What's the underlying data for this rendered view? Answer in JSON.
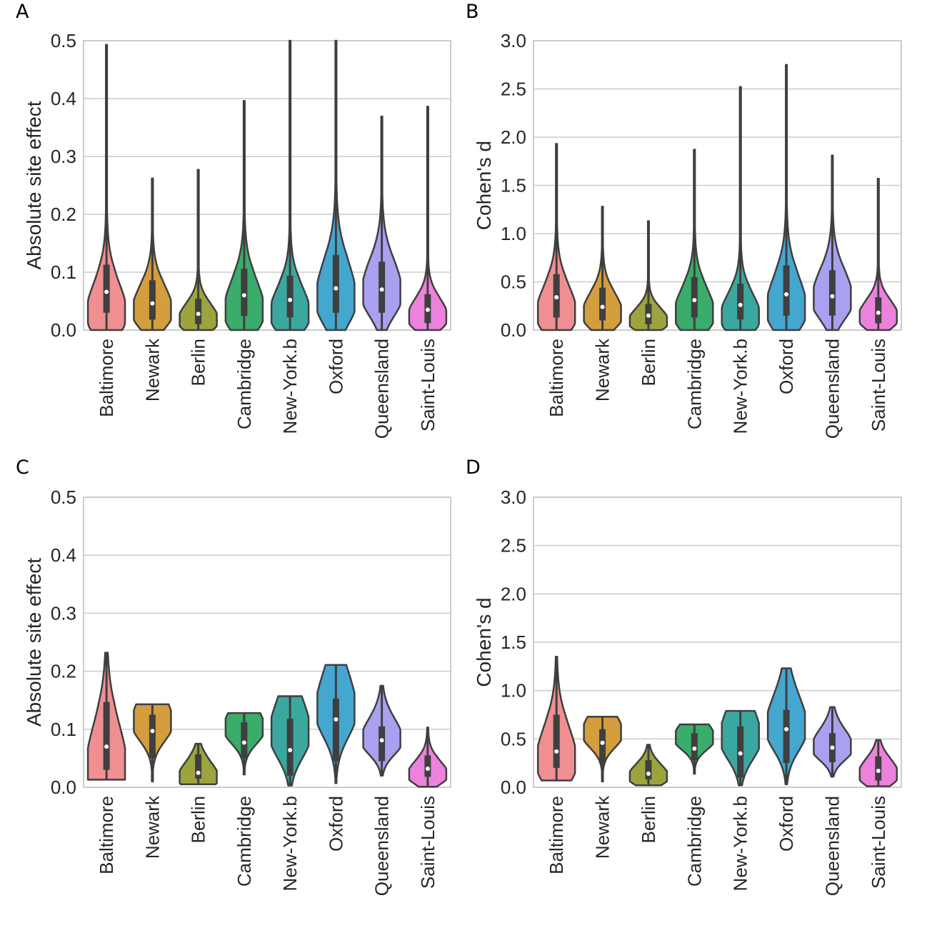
{
  "chart_data": [
    {
      "panel": "A",
      "type": "violin",
      "ylabel": "Absolute site effect",
      "ylim": [
        0,
        0.5
      ],
      "yticks": [
        "0.0",
        "0.1",
        "0.2",
        "0.3",
        "0.4",
        "0.5"
      ],
      "grid": true,
      "categories": [
        "Baltimore",
        "Newark",
        "Berlin",
        "Cambridge",
        "New-York.b",
        "Oxford",
        "Queensland",
        "Saint-Louis"
      ],
      "colors": [
        "#f08f92",
        "#d49d3e",
        "#9da43e",
        "#3aac6b",
        "#3ba8a0",
        "#44a7cf",
        "#a8a1ef",
        "#ed82dc"
      ],
      "series": [
        {
          "name": "Baltimore",
          "min": 0.0,
          "q1": 0.03,
          "median": 0.066,
          "q3": 0.113,
          "max": 0.493,
          "peak": 0.025,
          "width": 0.0
        },
        {
          "name": "Newark",
          "min": 0.0,
          "q1": 0.018,
          "median": 0.046,
          "q3": 0.086,
          "max": 0.262,
          "peak": 0.03,
          "width": 0.0
        },
        {
          "name": "Berlin",
          "min": 0.0,
          "q1": 0.01,
          "median": 0.028,
          "q3": 0.054,
          "max": 0.277,
          "peak": 0.015,
          "width": 0.0
        },
        {
          "name": "Cambridge",
          "min": 0.0,
          "q1": 0.024,
          "median": 0.06,
          "q3": 0.106,
          "max": 0.396,
          "peak": 0.03,
          "width": 0.0
        },
        {
          "name": "New-York.b",
          "min": 0.0,
          "q1": 0.022,
          "median": 0.052,
          "q3": 0.094,
          "max": 0.5,
          "peak": 0.025,
          "width": 0.0
        },
        {
          "name": "Oxford",
          "min": 0.0,
          "q1": 0.03,
          "median": 0.072,
          "q3": 0.13,
          "max": 0.5,
          "peak": 0.05,
          "width": 0.0
        },
        {
          "name": "Queensland",
          "min": 0.0,
          "q1": 0.03,
          "median": 0.07,
          "q3": 0.118,
          "max": 0.369,
          "peak": 0.06,
          "width": 0.0
        },
        {
          "name": "Saint-Louis",
          "min": 0.0,
          "q1": 0.012,
          "median": 0.035,
          "q3": 0.062,
          "max": 0.386,
          "peak": 0.02,
          "width": 0.0
        }
      ]
    },
    {
      "panel": "B",
      "type": "violin",
      "ylabel": "Cohen's d",
      "ylim": [
        0,
        3.0
      ],
      "yticks": [
        "0.0",
        "0.5",
        "1.0",
        "1.5",
        "2.0",
        "2.5",
        "3.0"
      ],
      "grid": true,
      "categories": [
        "Baltimore",
        "Newark",
        "Berlin",
        "Cambridge",
        "New-York.b",
        "Oxford",
        "Queensland",
        "Saint-Louis"
      ],
      "colors": [
        "#f08f92",
        "#d49d3e",
        "#9da43e",
        "#3aac6b",
        "#3ba8a0",
        "#44a7cf",
        "#a8a1ef",
        "#ed82dc"
      ],
      "series": [
        {
          "name": "Baltimore",
          "min": 0.0,
          "q1": 0.13,
          "median": 0.34,
          "q3": 0.58,
          "max": 1.93,
          "peak": 0.15,
          "width": 0.0
        },
        {
          "name": "Newark",
          "min": 0.0,
          "q1": 0.1,
          "median": 0.24,
          "q3": 0.44,
          "max": 1.28,
          "peak": 0.15,
          "width": 0.0
        },
        {
          "name": "Berlin",
          "min": 0.0,
          "q1": 0.06,
          "median": 0.15,
          "q3": 0.27,
          "max": 1.13,
          "peak": 0.08,
          "width": 0.0
        },
        {
          "name": "Cambridge",
          "min": 0.0,
          "q1": 0.13,
          "median": 0.31,
          "q3": 0.55,
          "max": 1.87,
          "peak": 0.15,
          "width": 0.0
        },
        {
          "name": "New-York.b",
          "min": 0.0,
          "q1": 0.11,
          "median": 0.26,
          "q3": 0.48,
          "max": 2.52,
          "peak": 0.12,
          "width": 0.0
        },
        {
          "name": "Oxford",
          "min": 0.0,
          "q1": 0.15,
          "median": 0.37,
          "q3": 0.67,
          "max": 2.75,
          "peak": 0.2,
          "width": 0.0
        },
        {
          "name": "Queensland",
          "min": 0.0,
          "q1": 0.15,
          "median": 0.35,
          "q3": 0.62,
          "max": 1.81,
          "peak": 0.3,
          "width": 0.0
        },
        {
          "name": "Saint-Louis",
          "min": 0.0,
          "q1": 0.07,
          "median": 0.18,
          "q3": 0.34,
          "max": 1.57,
          "peak": 0.12,
          "width": 0.0
        }
      ]
    },
    {
      "panel": "C",
      "type": "violin",
      "ylabel": "Absolute site effect",
      "ylim": [
        0,
        0.5
      ],
      "yticks": [
        "0.0",
        "0.1",
        "0.2",
        "0.3",
        "0.4",
        "0.5"
      ],
      "grid": true,
      "categories": [
        "Baltimore",
        "Newark",
        "Berlin",
        "Cambridge",
        "New-York.b",
        "Oxford",
        "Queensland",
        "Saint-Louis"
      ],
      "colors": [
        "#f08f92",
        "#d49d3e",
        "#9da43e",
        "#3aac6b",
        "#3ba8a0",
        "#44a7cf",
        "#a8a1ef",
        "#ed82dc"
      ],
      "series": [
        {
          "name": "Baltimore",
          "min": 0.013,
          "q1": 0.03,
          "median": 0.07,
          "q3": 0.147,
          "max": 0.232,
          "peak": 0.03,
          "width": 0.0
        },
        {
          "name": "Newark",
          "min": 0.01,
          "q1": 0.05,
          "median": 0.097,
          "q3": 0.125,
          "max": 0.143,
          "peak": 0.11,
          "width": 0.0
        },
        {
          "name": "Berlin",
          "min": 0.005,
          "q1": 0.015,
          "median": 0.025,
          "q3": 0.057,
          "max": 0.075,
          "peak": 0.015,
          "width": 0.0
        },
        {
          "name": "Cambridge",
          "min": 0.022,
          "q1": 0.05,
          "median": 0.077,
          "q3": 0.112,
          "max": 0.128,
          "peak": 0.1,
          "width": 0.0
        },
        {
          "name": "New-York.b",
          "min": 0.003,
          "q1": 0.02,
          "median": 0.064,
          "q3": 0.118,
          "max": 0.157,
          "peak": 0.09,
          "width": 0.0
        },
        {
          "name": "Oxford",
          "min": 0.007,
          "q1": 0.045,
          "median": 0.117,
          "q3": 0.153,
          "max": 0.211,
          "peak": 0.13,
          "width": 0.0
        },
        {
          "name": "Queensland",
          "min": 0.02,
          "q1": 0.045,
          "median": 0.081,
          "q3": 0.105,
          "max": 0.175,
          "peak": 0.08,
          "width": 0.0
        },
        {
          "name": "Saint-Louis",
          "min": 0.001,
          "q1": 0.018,
          "median": 0.032,
          "q3": 0.055,
          "max": 0.103,
          "peak": 0.02,
          "width": 0.0
        }
      ]
    },
    {
      "panel": "D",
      "type": "violin",
      "ylabel": "Cohen's d",
      "ylim": [
        0,
        3.0
      ],
      "yticks": [
        "0.0",
        "0.5",
        "1.0",
        "1.5",
        "2.0",
        "2.5",
        "3.0"
      ],
      "grid": true,
      "categories": [
        "Baltimore",
        "Newark",
        "Berlin",
        "Cambridge",
        "New-York.b",
        "Oxford",
        "Queensland",
        "Saint-Louis"
      ],
      "colors": [
        "#f08f92",
        "#d49d3e",
        "#9da43e",
        "#3aac6b",
        "#3ba8a0",
        "#44a7cf",
        "#a8a1ef",
        "#ed82dc"
      ],
      "series": [
        {
          "name": "Baltimore",
          "min": 0.07,
          "q1": 0.2,
          "median": 0.37,
          "q3": 0.75,
          "max": 1.35,
          "peak": 0.25,
          "width": 0.0
        },
        {
          "name": "Newark",
          "min": 0.06,
          "q1": 0.25,
          "median": 0.46,
          "q3": 0.6,
          "max": 0.73,
          "peak": 0.55,
          "width": 0.0
        },
        {
          "name": "Berlin",
          "min": 0.02,
          "q1": 0.08,
          "median": 0.14,
          "q3": 0.28,
          "max": 0.44,
          "peak": 0.1,
          "width": 0.0
        },
        {
          "name": "Cambridge",
          "min": 0.14,
          "q1": 0.28,
          "median": 0.4,
          "q3": 0.56,
          "max": 0.65,
          "peak": 0.5,
          "width": 0.0
        },
        {
          "name": "New-York.b",
          "min": 0.02,
          "q1": 0.1,
          "median": 0.35,
          "q3": 0.63,
          "max": 0.79,
          "peak": 0.5,
          "width": 0.0
        },
        {
          "name": "Oxford",
          "min": 0.03,
          "q1": 0.25,
          "median": 0.6,
          "q3": 0.8,
          "max": 1.23,
          "peak": 0.6,
          "width": 0.0
        },
        {
          "name": "Queensland",
          "min": 0.11,
          "q1": 0.26,
          "median": 0.41,
          "q3": 0.56,
          "max": 0.83,
          "peak": 0.4,
          "width": 0.0
        },
        {
          "name": "Saint-Louis",
          "min": 0.01,
          "q1": 0.07,
          "median": 0.17,
          "q3": 0.32,
          "max": 0.49,
          "peak": 0.12,
          "width": 0.0
        }
      ]
    }
  ]
}
